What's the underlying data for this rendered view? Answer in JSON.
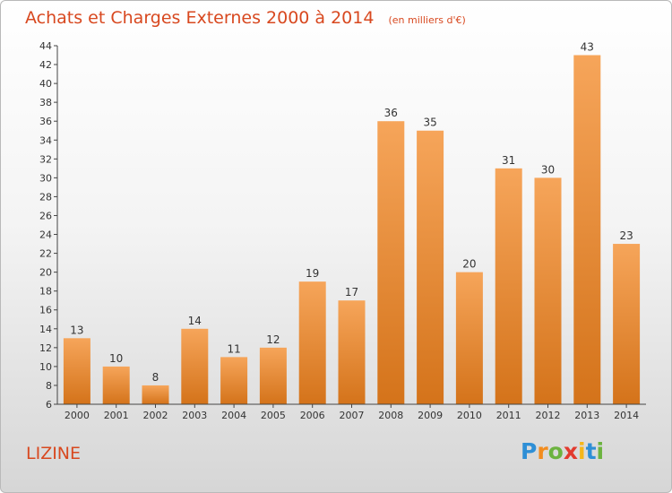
{
  "header": {
    "title": "Achats et Charges Externes 2000 à 2014",
    "subtitle": "(en milliers d'€)"
  },
  "footer": {
    "commune": "LIZINE",
    "logo_letters": [
      {
        "ch": "P",
        "color": "#2e8fd6"
      },
      {
        "ch": "r",
        "color": "#f28c1e"
      },
      {
        "ch": "o",
        "color": "#6cb33f"
      },
      {
        "ch": "x",
        "color": "#e23a2e"
      },
      {
        "ch": "i",
        "color": "#f5b61a"
      },
      {
        "ch": "t",
        "color": "#2e8fd6"
      },
      {
        "ch": "i",
        "color": "#6cb33f"
      }
    ]
  },
  "chart_data": {
    "type": "bar",
    "title": "Achats et Charges Externes 2000 à 2014",
    "subtitle": "(en milliers d'€)",
    "categories": [
      "2000",
      "2001",
      "2002",
      "2003",
      "2004",
      "2005",
      "2006",
      "2007",
      "2008",
      "2009",
      "2010",
      "2011",
      "2012",
      "2013",
      "2014"
    ],
    "values": [
      13,
      10,
      8,
      14,
      11,
      12,
      19,
      17,
      36,
      35,
      20,
      31,
      30,
      43,
      23
    ],
    "ylim": [
      6,
      44
    ],
    "yticks": [
      6,
      8,
      10,
      12,
      14,
      16,
      18,
      20,
      22,
      24,
      26,
      28,
      30,
      32,
      34,
      36,
      38,
      40,
      42,
      44
    ],
    "grid": false,
    "bar_color_top": "#f6a55a",
    "bar_color_bottom": "#d4731a",
    "axis_color": "#444444"
  }
}
